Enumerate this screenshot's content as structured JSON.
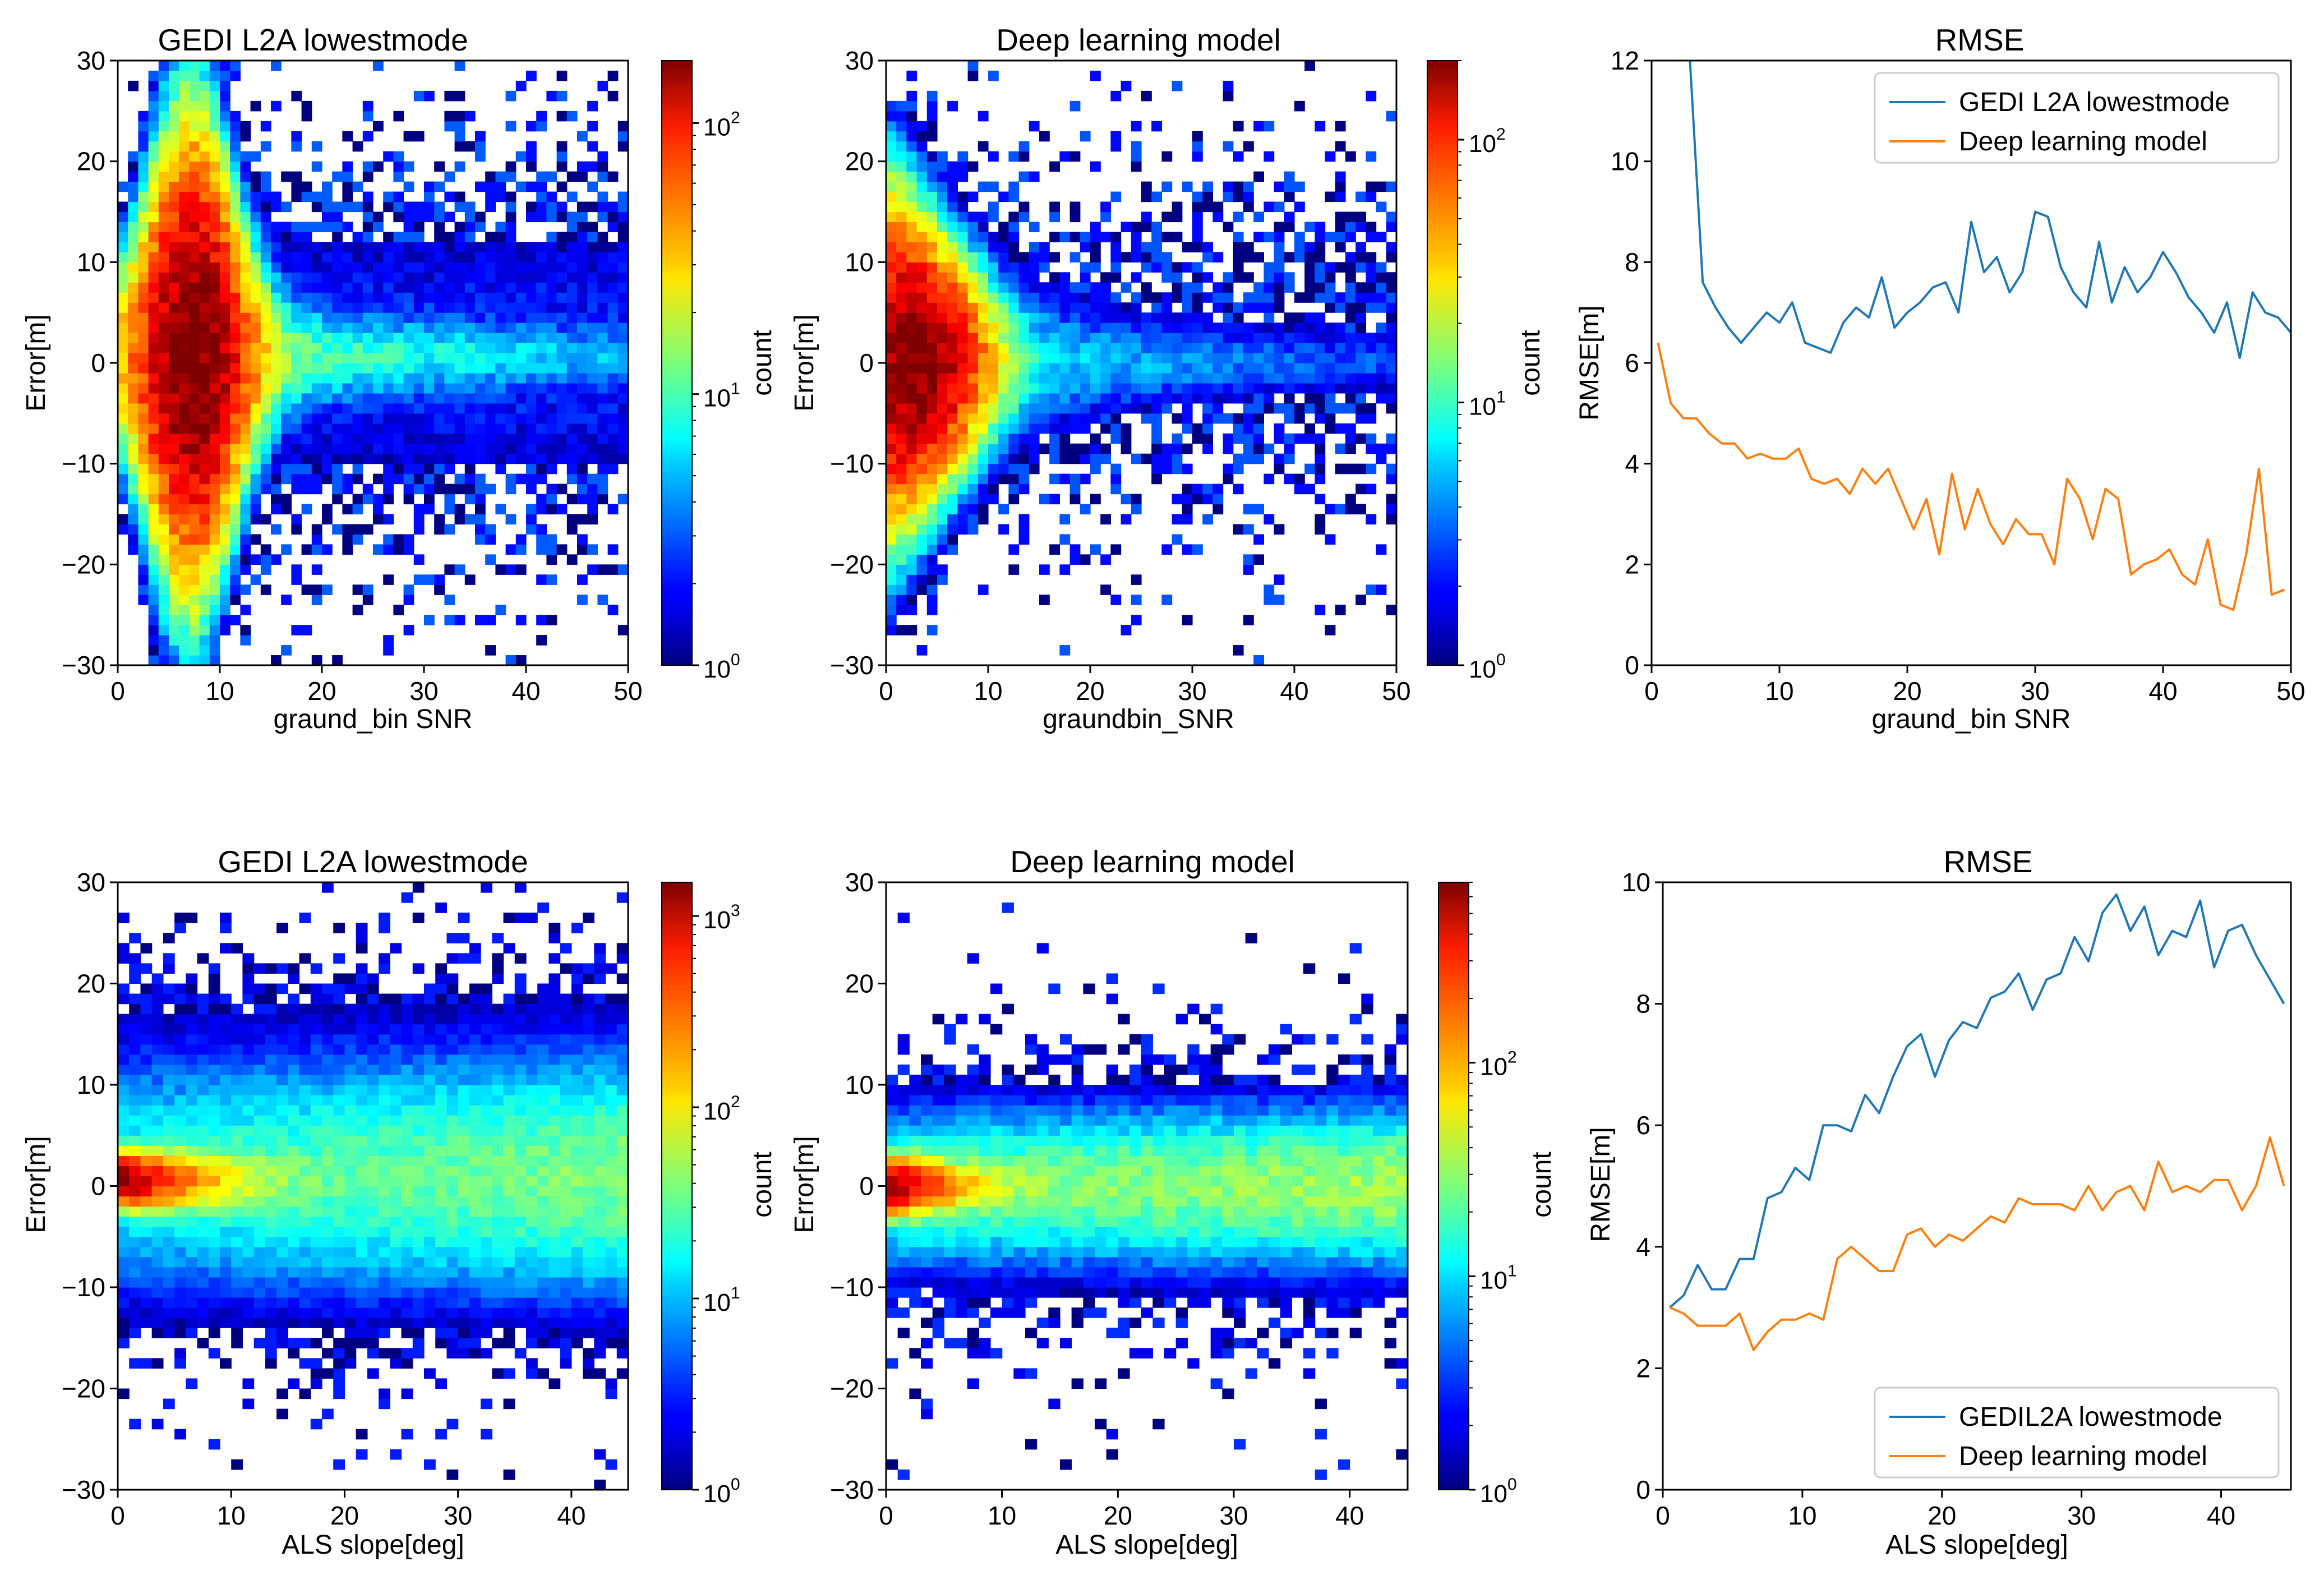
{
  "figure": {
    "panels": [
      {
        "title": "GEDI L2A lowestmode",
        "xlabel": "graund_bin SNR",
        "ylabel": "Error[m]",
        "cbar_label": "count"
      },
      {
        "title": "Deep learning model",
        "xlabel": "graundbin_SNR",
        "ylabel": "Error[m]",
        "cbar_label": "count"
      },
      {
        "title": "RMSE",
        "xlabel": "graund_bin SNR",
        "ylabel": "RMSE[m]"
      },
      {
        "title": "GEDI L2A lowestmode",
        "xlabel": "ALS slope[deg]",
        "ylabel": "Error[m]",
        "cbar_label": "count"
      },
      {
        "title": "Deep learning model",
        "xlabel": "ALS slope[deg]",
        "ylabel": "Error[m]",
        "cbar_label": "count"
      },
      {
        "title": "RMSE",
        "xlabel": "ALS slope[deg]",
        "ylabel": "RMSE[m]"
      }
    ]
  },
  "chart_data": [
    {
      "type": "heatmap",
      "title": "GEDI L2A lowestmode",
      "xlabel": "graund_bin SNR",
      "ylabel": "Error[m]",
      "xlim": [
        0,
        50
      ],
      "ylim": [
        -30,
        30
      ],
      "xticks": [
        0,
        10,
        20,
        30,
        40,
        50
      ],
      "yticks": [
        -30,
        -20,
        -10,
        0,
        10,
        20,
        30
      ],
      "colorbar": {
        "label": "count",
        "scale": "log",
        "range": [
          1,
          170
        ],
        "ticks": [
          1,
          10,
          100
        ],
        "colormap": "jet"
      },
      "description_values": {
        "peak_x": 7,
        "peak_y": 0.5,
        "peak_count": 170
      }
    },
    {
      "type": "heatmap",
      "title": "Deep learning model",
      "xlabel": "graundbin_SNR",
      "ylabel": "Error[m]",
      "xlim": [
        0,
        50
      ],
      "ylim": [
        -30,
        30
      ],
      "xticks": [
        0,
        10,
        20,
        30,
        40,
        50
      ],
      "yticks": [
        -30,
        -20,
        -10,
        0,
        10,
        20,
        30
      ],
      "colorbar": {
        "label": "count",
        "scale": "log",
        "range": [
          1,
          200
        ],
        "ticks": [
          1,
          10,
          100
        ],
        "colormap": "jet"
      },
      "description_values": {
        "peak_x": 3,
        "peak_y": 0,
        "peak_count": 200
      }
    },
    {
      "type": "line",
      "title": "RMSE",
      "xlabel": "graund_bin SNR",
      "ylabel": "RMSE[m]",
      "xlim": [
        0,
        50
      ],
      "ylim": [
        0,
        12
      ],
      "xticks": [
        0,
        10,
        20,
        30,
        40,
        50
      ],
      "yticks": [
        0,
        2,
        4,
        6,
        8,
        10,
        12
      ],
      "legend": "top-right",
      "series": [
        {
          "name": "GEDI L2A lowestmode",
          "color": "#1f77b4",
          "x": [
            3,
            4,
            5,
            6,
            7,
            8,
            9,
            10,
            11,
            12,
            13,
            14,
            15,
            16,
            17,
            18,
            19,
            20,
            21,
            22,
            23,
            24,
            25,
            26,
            27,
            28,
            29,
            30,
            31,
            32,
            33,
            34,
            35,
            36,
            37,
            38,
            39,
            40,
            41,
            42,
            43,
            44,
            45,
            46,
            47,
            48,
            49,
            50
          ],
          "values": [
            12,
            7.6,
            7.1,
            6.7,
            6.4,
            6.7,
            7.0,
            6.8,
            7.2,
            6.4,
            6.3,
            6.2,
            6.8,
            7.1,
            6.9,
            7.7,
            6.7,
            7.0,
            7.2,
            7.5,
            7.6,
            7.0,
            8.8,
            7.8,
            8.1,
            7.4,
            7.8,
            9.0,
            8.9,
            7.9,
            7.4,
            7.1,
            8.4,
            7.2,
            7.9,
            7.4,
            7.7,
            8.2,
            7.8,
            7.3,
            7.0,
            6.6,
            7.2,
            6.1,
            7.4,
            7.0,
            6.9,
            6.6
          ]
        },
        {
          "name": "Deep learning model",
          "color": "#ff7f0e",
          "x": [
            0.5,
            1.5,
            2.5,
            3.5,
            4.5,
            5.5,
            6.5,
            7.5,
            8.5,
            9.5,
            10.5,
            11.5,
            12.5,
            13.5,
            14.5,
            15.5,
            16.5,
            17.5,
            18.5,
            19.5,
            20.5,
            21.5,
            22.5,
            23.5,
            24.5,
            25.5,
            26.5,
            27.5,
            28.5,
            29.5,
            30.5,
            31.5,
            32.5,
            33.5,
            34.5,
            35.5,
            36.5,
            37.5,
            38.5,
            39.5,
            40.5,
            41.5,
            42.5,
            43.5,
            44.5,
            45.5,
            46.5,
            47.5,
            48.5,
            49.5
          ],
          "values": [
            6.4,
            5.2,
            4.9,
            4.9,
            4.6,
            4.4,
            4.4,
            4.1,
            4.2,
            4.1,
            4.1,
            4.3,
            3.7,
            3.6,
            3.7,
            3.4,
            3.9,
            3.6,
            3.9,
            3.3,
            2.7,
            3.3,
            2.2,
            3.8,
            2.7,
            3.5,
            2.8,
            2.4,
            2.9,
            2.6,
            2.6,
            2.0,
            3.7,
            3.3,
            2.5,
            3.5,
            3.3,
            1.8,
            2.0,
            2.1,
            2.3,
            1.8,
            1.6,
            2.5,
            1.2,
            1.1,
            2.2,
            3.9,
            1.4,
            1.5
          ]
        }
      ]
    },
    {
      "type": "heatmap",
      "title": "GEDI L2A lowestmode",
      "xlabel": "ALS slope[deg]",
      "ylabel": "Error[m]",
      "xlim": [
        0,
        45
      ],
      "ylim": [
        -30,
        30
      ],
      "xticks": [
        0,
        10,
        20,
        30,
        40
      ],
      "yticks": [
        -30,
        -20,
        -10,
        0,
        10,
        20,
        30
      ],
      "colorbar": {
        "label": "count",
        "scale": "log",
        "range": [
          1,
          1500
        ],
        "ticks": [
          1,
          10,
          100,
          1000
        ],
        "colormap": "jet"
      },
      "description_values": {
        "peak_x": 0.5,
        "peak_y": 0.5,
        "peak_count": 1500
      }
    },
    {
      "type": "heatmap",
      "title": "Deep learning model",
      "xlabel": "ALS slope[deg]",
      "ylabel": "Error[m]",
      "xlim": [
        0,
        45
      ],
      "ylim": [
        -30,
        30
      ],
      "xticks": [
        0,
        10,
        20,
        30,
        40
      ],
      "yticks": [
        -30,
        -20,
        -10,
        0,
        10,
        20,
        30
      ],
      "colorbar": {
        "label": "count",
        "scale": "log",
        "range": [
          1,
          700
        ],
        "ticks": [
          1,
          10,
          100
        ],
        "colormap": "jet"
      },
      "description_values": {
        "peak_x": 0.5,
        "peak_y": 0,
        "peak_count": 700
      }
    },
    {
      "type": "line",
      "title": "RMSE",
      "xlabel": "ALS slope[deg]",
      "ylabel": "RMSE[m]",
      "xlim": [
        0,
        45
      ],
      "ylim": [
        0,
        10
      ],
      "xticks": [
        0,
        10,
        20,
        30,
        40
      ],
      "yticks": [
        0,
        2,
        4,
        6,
        8,
        10
      ],
      "legend": "bottom-right",
      "series": [
        {
          "name": "GEDIL2A lowestmode",
          "color": "#1f77b4",
          "x": [
            0.5,
            1.5,
            2.5,
            3.5,
            4.5,
            5.5,
            6.5,
            7.5,
            8.5,
            9.5,
            10.5,
            11.5,
            12.5,
            13.5,
            14.5,
            15.5,
            16.5,
            17.5,
            18.5,
            19.5,
            20.5,
            21.5,
            22.5,
            23.5,
            24.5,
            25.5,
            26.5,
            27.5,
            28.5,
            29.5,
            30.5,
            31.5,
            32.5,
            33.5,
            34.5,
            35.5,
            36.5,
            37.5,
            38.5,
            39.5,
            40.5,
            41.5,
            42.5,
            43.5,
            44.5
          ],
          "values": [
            3.0,
            3.2,
            3.7,
            3.3,
            3.3,
            3.8,
            3.8,
            4.8,
            4.9,
            5.3,
            5.1,
            6.0,
            6.0,
            5.9,
            6.5,
            6.2,
            6.8,
            7.3,
            7.5,
            6.8,
            7.4,
            7.7,
            7.6,
            8.1,
            8.2,
            8.5,
            7.9,
            8.4,
            8.5,
            9.1,
            8.7,
            9.5,
            9.8,
            9.2,
            9.6,
            8.8,
            9.2,
            9.1,
            9.7,
            8.6,
            9.2,
            9.3,
            8.8,
            8.4,
            8.0
          ]
        },
        {
          "name": "Deep learning model",
          "color": "#ff7f0e",
          "x": [
            0.5,
            1.5,
            2.5,
            3.5,
            4.5,
            5.5,
            6.5,
            7.5,
            8.5,
            9.5,
            10.5,
            11.5,
            12.5,
            13.5,
            14.5,
            15.5,
            16.5,
            17.5,
            18.5,
            19.5,
            20.5,
            21.5,
            22.5,
            23.5,
            24.5,
            25.5,
            26.5,
            27.5,
            28.5,
            29.5,
            30.5,
            31.5,
            32.5,
            33.5,
            34.5,
            35.5,
            36.5,
            37.5,
            38.5,
            39.5,
            40.5,
            41.5,
            42.5,
            43.5,
            44.5
          ],
          "values": [
            3.0,
            2.9,
            2.7,
            2.7,
            2.7,
            2.9,
            2.3,
            2.6,
            2.8,
            2.8,
            2.9,
            2.8,
            3.8,
            4.0,
            3.8,
            3.6,
            3.6,
            4.2,
            4.3,
            4.0,
            4.2,
            4.1,
            4.3,
            4.5,
            4.4,
            4.8,
            4.7,
            4.7,
            4.7,
            4.6,
            5.0,
            4.6,
            4.9,
            5.0,
            4.6,
            5.4,
            4.9,
            5.0,
            4.9,
            5.1,
            5.1,
            4.6,
            5.0,
            5.8,
            5.0
          ]
        }
      ]
    }
  ]
}
